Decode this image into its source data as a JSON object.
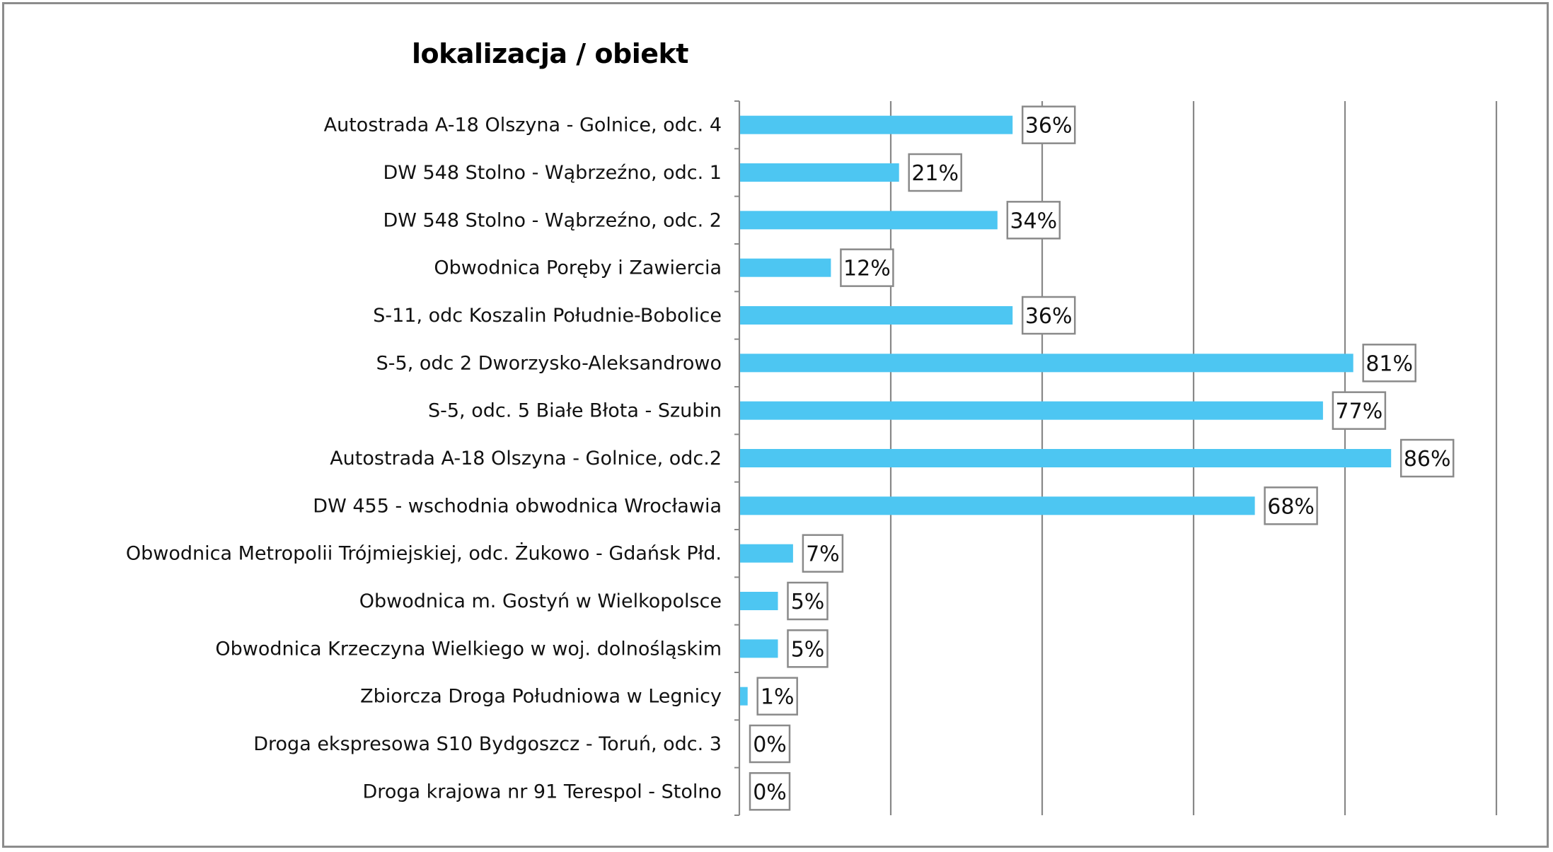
{
  "chart_data": {
    "type": "bar",
    "orientation": "horizontal",
    "title": "lokalizacja / obiekt",
    "xlabel": "",
    "ylabel": "",
    "xlim": [
      0,
      100
    ],
    "grid": true,
    "series_color": "#4dc6f2",
    "categories": [
      "Autostrada A-18 Olszyna - Golnice, odc. 4",
      "DW 548 Stolno - Wąbrzeźno, odc. 1",
      "DW 548 Stolno - Wąbrzeźno, odc. 2",
      "Obwodnica Poręby i Zawiercia",
      "S-11, odc Koszalin Południe-Bobolice",
      "S-5, odc 2 Dworzysko-Aleksandrowo",
      "S-5, odc. 5 Białe Błota - Szubin",
      "Autostrada A-18 Olszyna - Golnice, odc.2",
      "DW 455 - wschodnia obwodnica Wrocławia",
      "Obwodnica Metropolii Trójmiejskiej, odc. Żukowo - Gdańsk Płd.",
      "Obwodnica m. Gostyń w Wielkopolsce",
      "Obwodnica  Krzeczyna Wielkiego w woj. dolnośląskim",
      "Zbiorcza Droga Południowa w Legnicy",
      "Droga ekspresowa S10 Bydgoszcz - Toruń, odc. 3",
      "Droga krajowa nr 91 Terespol - Stolno"
    ],
    "values": [
      36,
      21,
      34,
      12,
      36,
      81,
      77,
      86,
      68,
      7,
      5,
      5,
      1,
      0,
      0
    ],
    "data_labels": [
      "36%",
      "21%",
      "34%",
      "12%",
      "36%",
      "81%",
      "77%",
      "86%",
      "68%",
      "7%",
      "5%",
      "5%",
      "1%",
      "0%",
      "0%"
    ]
  }
}
